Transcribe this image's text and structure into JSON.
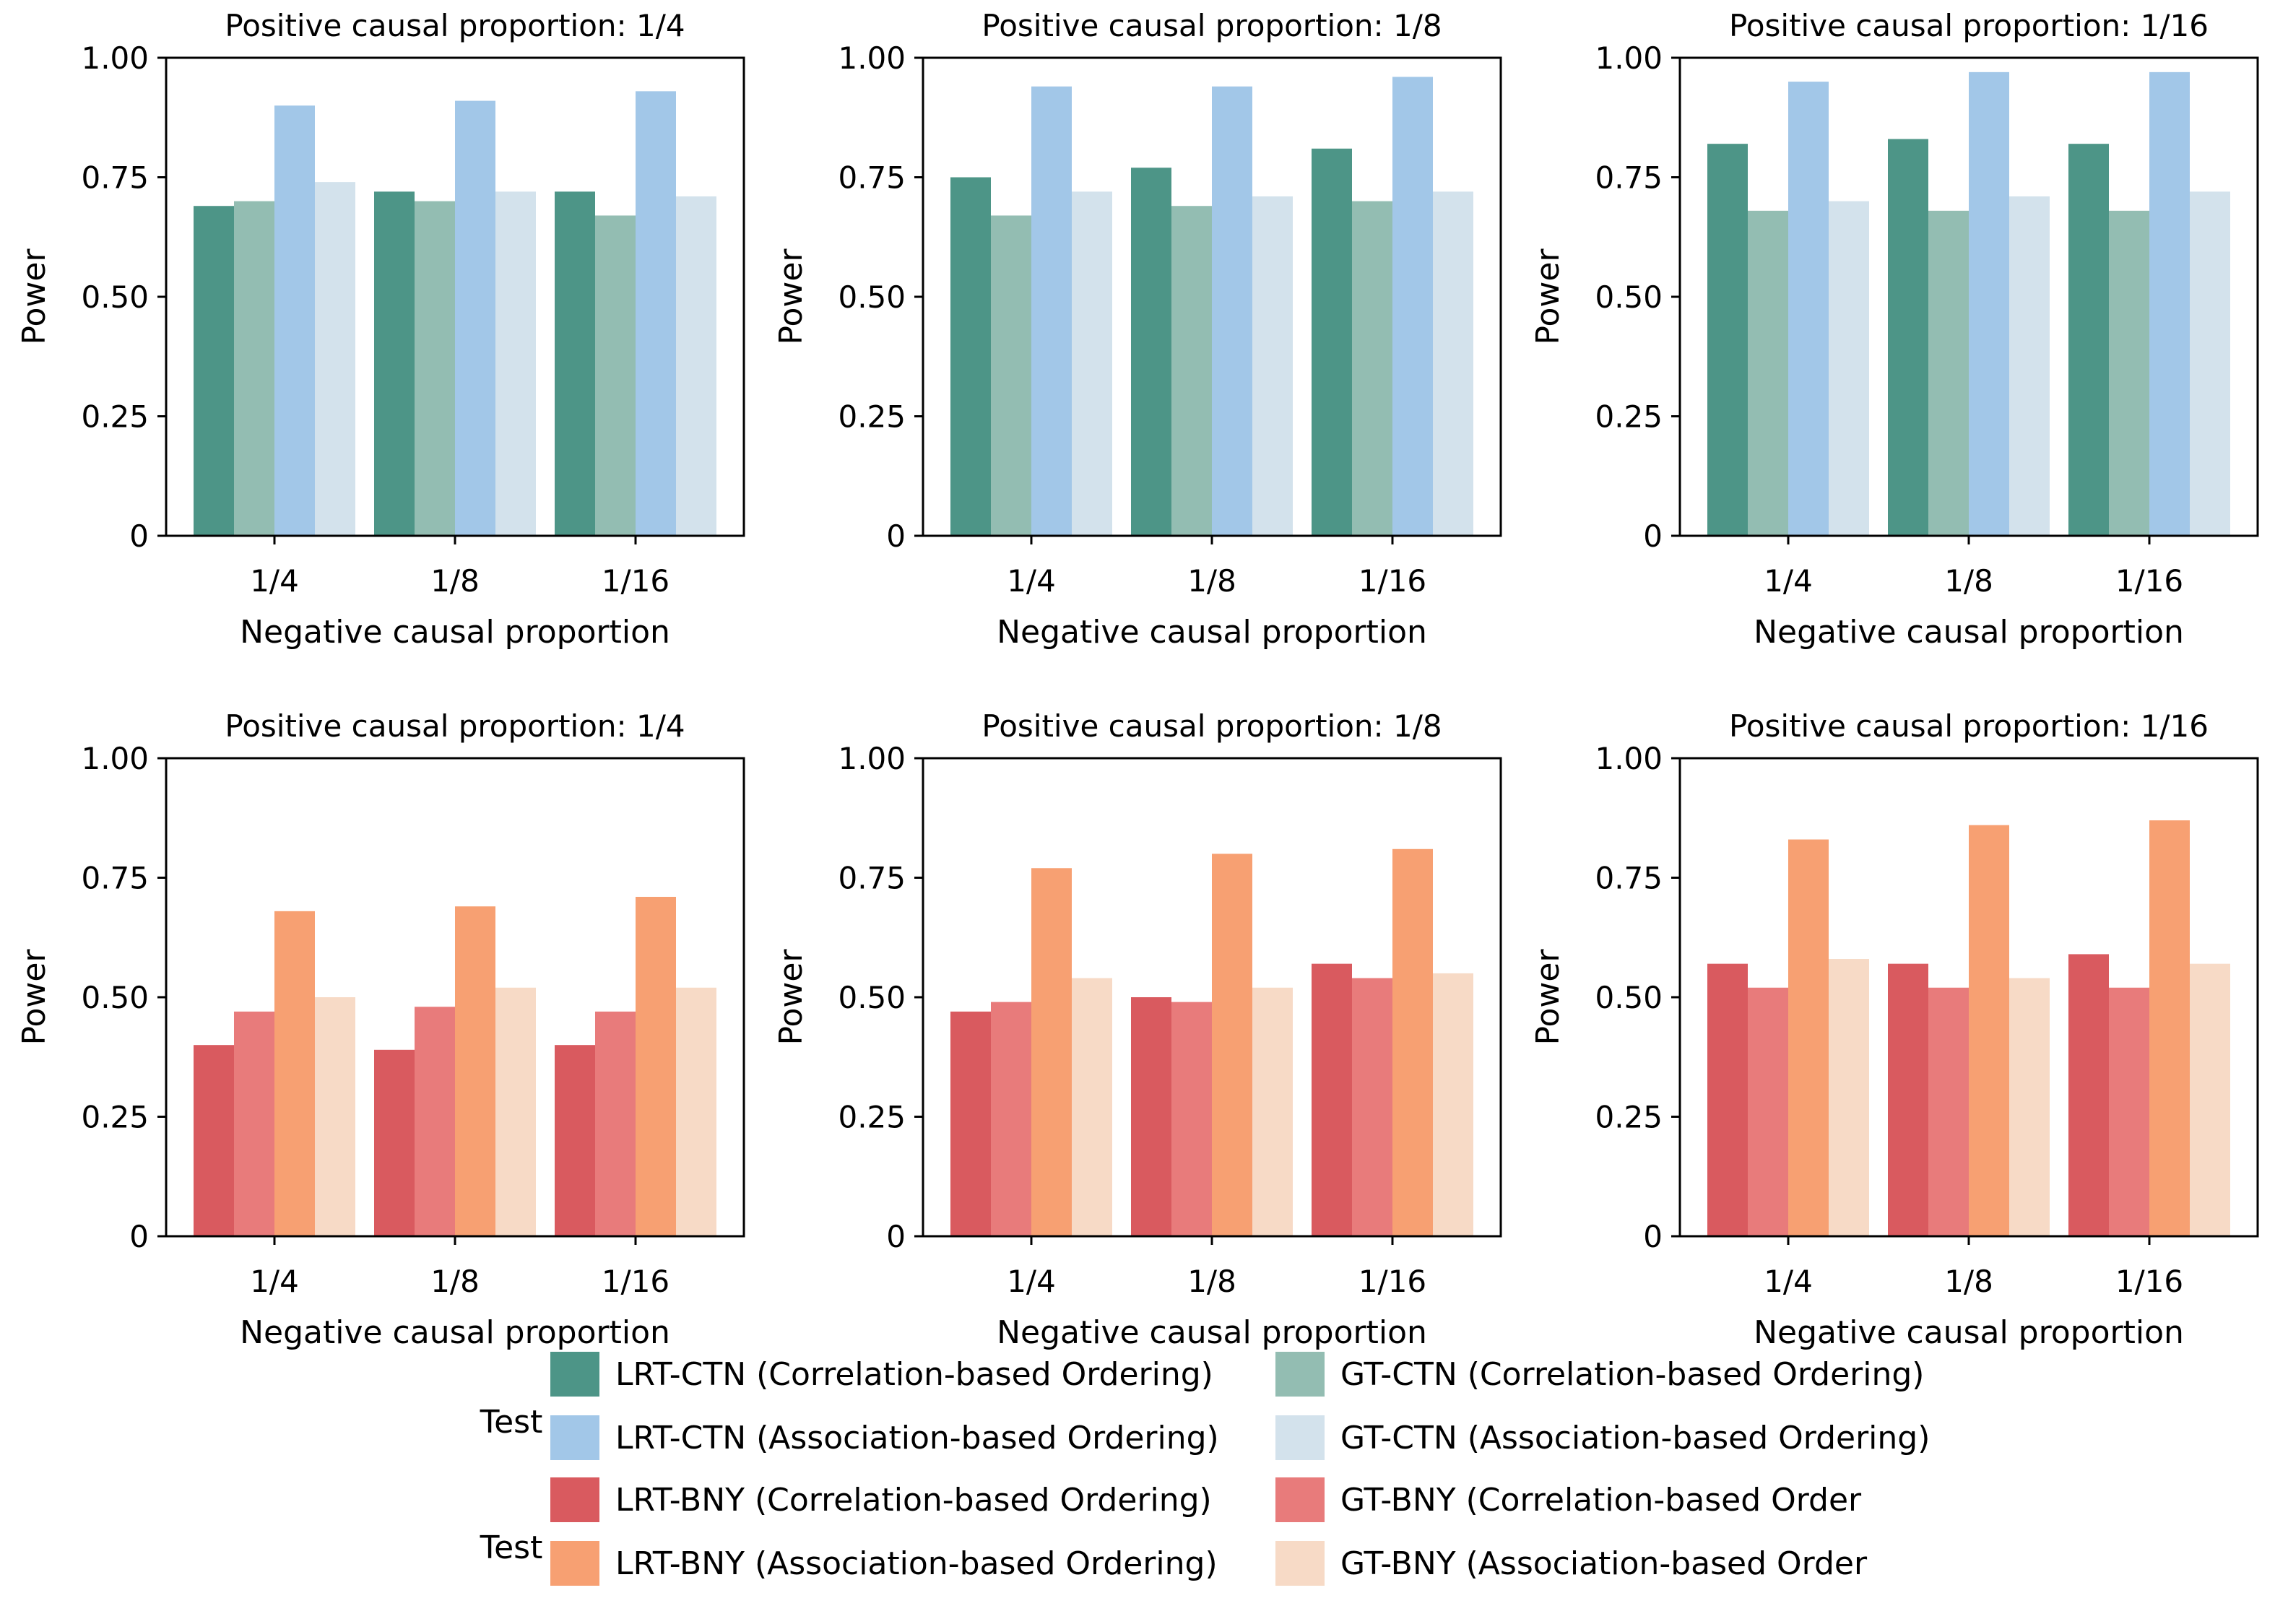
{
  "chart_data": [
    {
      "type": "bar",
      "palette": "ctn",
      "title": "Positive causal proportion: 1/4",
      "xlabel": "Negative causal proportion",
      "ylabel": "Power",
      "ylim": [
        0,
        1
      ],
      "yticks": [
        "0",
        "0.25",
        "0.50",
        "0.75",
        "1.00"
      ],
      "categories": [
        "1/4",
        "1/8",
        "1/16"
      ],
      "series": [
        {
          "name": "LRT-CTN (Correlation-based Ordering)",
          "values": [
            0.69,
            0.72,
            0.72
          ]
        },
        {
          "name": "GT-CTN (Correlation-based Ordering)",
          "values": [
            0.7,
            0.7,
            0.67
          ]
        },
        {
          "name": "LRT-CTN (Association-based Ordering)",
          "values": [
            0.9,
            0.91,
            0.93
          ]
        },
        {
          "name": "GT-CTN (Association-based Ordering)",
          "values": [
            0.74,
            0.72,
            0.71
          ]
        }
      ]
    },
    {
      "type": "bar",
      "palette": "ctn",
      "title": "Positive causal proportion: 1/8",
      "xlabel": "Negative causal proportion",
      "ylabel": "Power",
      "ylim": [
        0,
        1
      ],
      "yticks": [
        "0",
        "0.25",
        "0.50",
        "0.75",
        "1.00"
      ],
      "categories": [
        "1/4",
        "1/8",
        "1/16"
      ],
      "series": [
        {
          "name": "LRT-CTN (Correlation-based Ordering)",
          "values": [
            0.75,
            0.77,
            0.81
          ]
        },
        {
          "name": "GT-CTN (Correlation-based Ordering)",
          "values": [
            0.67,
            0.69,
            0.7
          ]
        },
        {
          "name": "LRT-CTN (Association-based Ordering)",
          "values": [
            0.94,
            0.94,
            0.96
          ]
        },
        {
          "name": "GT-CTN (Association-based Ordering)",
          "values": [
            0.72,
            0.71,
            0.72
          ]
        }
      ]
    },
    {
      "type": "bar",
      "palette": "ctn",
      "title": "Positive causal proportion: 1/16",
      "xlabel": "Negative causal proportion",
      "ylabel": "Power",
      "ylim": [
        0,
        1
      ],
      "yticks": [
        "0",
        "0.25",
        "0.50",
        "0.75",
        "1.00"
      ],
      "categories": [
        "1/4",
        "1/8",
        "1/16"
      ],
      "series": [
        {
          "name": "LRT-CTN (Correlation-based Ordering)",
          "values": [
            0.82,
            0.83,
            0.82
          ]
        },
        {
          "name": "GT-CTN (Correlation-based Ordering)",
          "values": [
            0.68,
            0.68,
            0.68
          ]
        },
        {
          "name": "LRT-CTN (Association-based Ordering)",
          "values": [
            0.95,
            0.97,
            0.97
          ]
        },
        {
          "name": "GT-CTN (Association-based Ordering)",
          "values": [
            0.7,
            0.71,
            0.72
          ]
        }
      ]
    },
    {
      "type": "bar",
      "palette": "bny",
      "title": "Positive causal proportion: 1/4",
      "xlabel": "Negative causal proportion",
      "ylabel": "Power",
      "ylim": [
        0,
        1
      ],
      "yticks": [
        "0",
        "0.25",
        "0.50",
        "0.75",
        "1.00"
      ],
      "categories": [
        "1/4",
        "1/8",
        "1/16"
      ],
      "series": [
        {
          "name": "LRT-BNY (Correlation-based Ordering)",
          "values": [
            0.4,
            0.39,
            0.4
          ]
        },
        {
          "name": "GT-BNY (Correlation-based Order",
          "values": [
            0.47,
            0.48,
            0.47
          ]
        },
        {
          "name": "LRT-BNY (Association-based Ordering)",
          "values": [
            0.68,
            0.69,
            0.71
          ]
        },
        {
          "name": "GT-BNY (Association-based Order",
          "values": [
            0.5,
            0.52,
            0.52
          ]
        }
      ]
    },
    {
      "type": "bar",
      "palette": "bny",
      "title": "Positive causal proportion: 1/8",
      "xlabel": "Negative causal proportion",
      "ylabel": "Power",
      "ylim": [
        0,
        1
      ],
      "yticks": [
        "0",
        "0.25",
        "0.50",
        "0.75",
        "1.00"
      ],
      "categories": [
        "1/4",
        "1/8",
        "1/16"
      ],
      "series": [
        {
          "name": "LRT-BNY (Correlation-based Ordering)",
          "values": [
            0.47,
            0.5,
            0.57
          ]
        },
        {
          "name": "GT-BNY (Correlation-based Order",
          "values": [
            0.49,
            0.49,
            0.54
          ]
        },
        {
          "name": "LRT-BNY (Association-based Ordering)",
          "values": [
            0.77,
            0.8,
            0.81
          ]
        },
        {
          "name": "GT-BNY (Association-based Order",
          "values": [
            0.54,
            0.52,
            0.55
          ]
        }
      ]
    },
    {
      "type": "bar",
      "palette": "bny",
      "title": "Positive causal proportion: 1/16",
      "xlabel": "Negative causal proportion",
      "ylabel": "Power",
      "ylim": [
        0,
        1
      ],
      "yticks": [
        "0",
        "0.25",
        "0.50",
        "0.75",
        "1.00"
      ],
      "categories": [
        "1/4",
        "1/8",
        "1/16"
      ],
      "series": [
        {
          "name": "LRT-BNY (Correlation-based Ordering)",
          "values": [
            0.57,
            0.57,
            0.59
          ]
        },
        {
          "name": "GT-BNY (Correlation-based Order",
          "values": [
            0.52,
            0.52,
            0.52
          ]
        },
        {
          "name": "LRT-BNY (Association-based Ordering)",
          "values": [
            0.83,
            0.86,
            0.87
          ]
        },
        {
          "name": "GT-BNY (Association-based Order",
          "values": [
            0.58,
            0.54,
            0.57
          ]
        }
      ]
    }
  ],
  "colors": {
    "ctn": [
      "#4d9587",
      "#93bdb2",
      "#a2c7e8",
      "#d3e2ec"
    ],
    "bny": [
      "#d95a5f",
      "#e87b7b",
      "#f7a072",
      "#f7dac6"
    ]
  },
  "legend": {
    "groups": [
      {
        "title": "Test",
        "entries": [
          {
            "label": "LRT-CTN (Correlation-based Ordering)",
            "color": "#4d9587"
          },
          {
            "label": "GT-CTN (Correlation-based Ordering)",
            "color": "#93bdb2"
          },
          {
            "label": "LRT-CTN (Association-based Ordering)",
            "color": "#a2c7e8"
          },
          {
            "label": "GT-CTN (Association-based Ordering)",
            "color": "#d3e2ec"
          }
        ]
      },
      {
        "title": "Test",
        "entries": [
          {
            "label": "LRT-BNY (Correlation-based Ordering)",
            "color": "#d95a5f"
          },
          {
            "label": "GT-BNY (Correlation-based Order",
            "color": "#e87b7b"
          },
          {
            "label": "LRT-BNY (Association-based Ordering)",
            "color": "#f7a072"
          },
          {
            "label": "GT-BNY (Association-based Order",
            "color": "#f7dac6"
          }
        ]
      }
    ]
  }
}
